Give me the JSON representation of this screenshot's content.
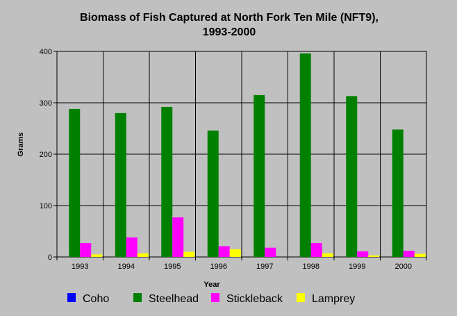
{
  "chart_data": {
    "type": "bar",
    "title": "Biomass of Fish Captured at North Fork Ten Mile (NFT9),",
    "subtitle": "1993-2000",
    "xlabel": "Year",
    "ylabel": "Grams",
    "ylim": [
      0,
      400
    ],
    "yticks": [
      0,
      100,
      200,
      300,
      400
    ],
    "grid": true,
    "legend_position": "bottom",
    "categories": [
      "1993",
      "1994",
      "1995",
      "1996",
      "1997",
      "1998",
      "1999",
      "2000"
    ],
    "series": [
      {
        "name": "Coho",
        "color": "#0000ff",
        "values": [
          0,
          0,
          0,
          0,
          0,
          0,
          0,
          0
        ]
      },
      {
        "name": "Steelhead",
        "color": "#008000",
        "values": [
          288,
          280,
          292,
          246,
          315,
          396,
          313,
          248
        ]
      },
      {
        "name": "Stickleback",
        "color": "#ff00ff",
        "values": [
          27,
          38,
          77,
          21,
          18,
          27,
          11,
          12
        ]
      },
      {
        "name": "Lamprey",
        "color": "#ffff00",
        "values": [
          5,
          7,
          10,
          15,
          0,
          7,
          3,
          6
        ]
      }
    ]
  }
}
